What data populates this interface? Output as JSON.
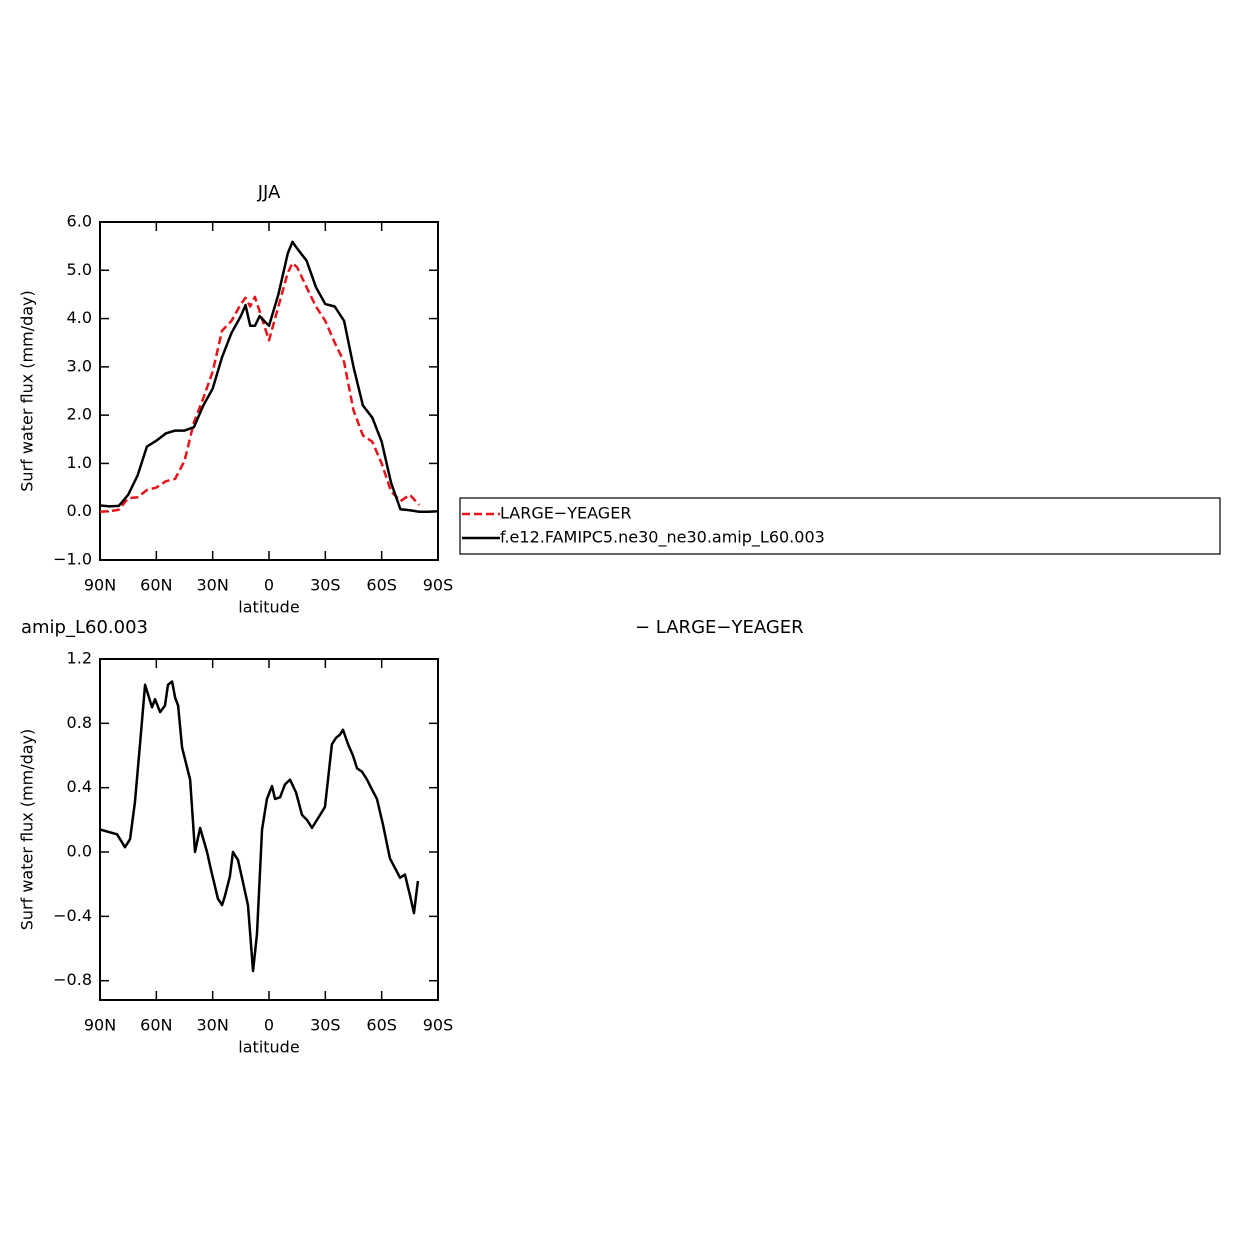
{
  "chart_data": [
    {
      "type": "line",
      "title": "JJA",
      "xlabel": "latitude",
      "ylabel": "Surf water flux (mm/day)",
      "x": [
        90,
        85,
        80,
        75,
        70,
        65,
        60,
        55,
        50,
        45,
        40,
        35,
        30,
        25,
        20,
        15,
        12.5,
        10,
        7.5,
        5,
        0,
        -5,
        -10,
        -12.5,
        -15,
        -20,
        -25,
        -30,
        -35,
        -40,
        -45,
        -50,
        -55,
        -60,
        -65,
        -70,
        -75,
        -80,
        -85,
        -90
      ],
      "series": [
        {
          "name": "LARGE−YEAGER",
          "color": "#e8141a",
          "dash": "8,4",
          "values": [
            0.0,
            0.01,
            0.04,
            0.28,
            0.3,
            0.45,
            0.5,
            0.63,
            0.68,
            1.05,
            1.85,
            2.35,
            2.9,
            3.75,
            3.95,
            4.3,
            4.43,
            4.25,
            4.45,
            4.15,
            3.55,
            4.25,
            4.95,
            5.15,
            5.06,
            4.65,
            4.25,
            3.95,
            3.5,
            3.1,
            2.1,
            1.58,
            1.45,
            1.0,
            0.42,
            0.22,
            0.35,
            0.14,
            null,
            null
          ]
        },
        {
          "name": "f.e12.FAMIPC5.ne30_ne30.amip_L60.003",
          "color": "#000000",
          "values": [
            0.13,
            0.11,
            0.12,
            0.35,
            0.75,
            1.35,
            1.47,
            1.62,
            1.68,
            1.68,
            1.75,
            2.2,
            2.55,
            3.2,
            3.7,
            4.05,
            4.28,
            3.85,
            3.85,
            4.05,
            3.85,
            4.5,
            5.35,
            5.59,
            5.45,
            5.2,
            4.65,
            4.3,
            4.25,
            3.95,
            3.0,
            2.2,
            1.95,
            1.45,
            0.6,
            0.05,
            0.03,
            0.0,
            0.0,
            0.01
          ]
        }
      ],
      "xlim": [
        90,
        -90
      ],
      "xticks": [
        {
          "value": 90,
          "label": "90N"
        },
        {
          "value": 60,
          "label": "60N"
        },
        {
          "value": 30,
          "label": "30N"
        },
        0,
        {
          "value": -30,
          "label": "30S"
        },
        {
          "value": -60,
          "label": "60S"
        },
        {
          "value": -90,
          "label": "90S"
        }
      ],
      "ylim": [
        -1,
        6
      ],
      "yticks": [
        {
          "value": 6,
          "label": "6.0"
        },
        {
          "value": 5,
          "label": "5.0"
        },
        {
          "value": 4,
          "label": "4.0"
        },
        {
          "value": 3,
          "label": "3.0"
        },
        {
          "value": 2,
          "label": "2.0"
        },
        {
          "value": 1,
          "label": "1.0"
        },
        {
          "value": 0,
          "label": "0.0"
        },
        {
          "value": -1,
          "label": "−1.0"
        }
      ],
      "grid": false,
      "legend": "right"
    },
    {
      "type": "line",
      "title": [
        "amip_L60.003",
        "− LARGE−YEAGER"
      ],
      "xlabel": "latitude",
      "ylabel": "Surf water flux (mm/day)",
      "x": [
        90,
        80.9,
        76.7,
        74,
        71.4,
        68.7,
        66,
        62.3,
        60.7,
        58,
        55.4,
        53.8,
        51.6,
        50,
        48.4,
        46.3,
        42,
        39.4,
        36.7,
        33,
        30.9,
        27.2,
        25,
        23.4,
        20.8,
        19.2,
        16.5,
        14.4,
        11.2,
        8.5,
        6.4,
        3.7,
        1.1,
        -1.6,
        -3.2,
        -5.9,
        -8.5,
        -11.2,
        -14.4,
        -17.6,
        -20.2,
        -22.9,
        -26.1,
        -29.8,
        -33.5,
        -35.7,
        -37.8,
        -39.4,
        -42.1,
        -44.7,
        -46.9,
        -49.5,
        -52.2,
        -54.8,
        -57.5,
        -60.7,
        -64.4,
        -67.1,
        -69.8,
        -72.4,
        -75.1,
        -77.2,
        -79.3
      ],
      "series": [
        {
          "color": "#000000",
          "values": [
            0.14,
            0.11,
            0.03,
            0.08,
            0.31,
            0.67,
            1.04,
            0.9,
            0.95,
            0.87,
            0.91,
            1.04,
            1.06,
            0.96,
            0.91,
            0.65,
            0.45,
            0.0,
            0.15,
            0.0,
            -0.11,
            -0.29,
            -0.33,
            -0.27,
            -0.15,
            0.0,
            -0.05,
            -0.16,
            -0.33,
            -0.74,
            -0.51,
            0.14,
            0.33,
            0.41,
            0.33,
            0.34,
            0.42,
            0.45,
            0.37,
            0.23,
            0.2,
            0.15,
            0.21,
            0.28,
            0.67,
            0.71,
            0.73,
            0.76,
            0.67,
            0.6,
            0.52,
            0.5,
            0.45,
            0.39,
            0.33,
            0.17,
            -0.04,
            -0.1,
            -0.16,
            -0.14,
            -0.27,
            -0.38,
            -0.18
          ]
        }
      ],
      "xlim": [
        90,
        -90
      ],
      "xticks": [
        {
          "value": 90,
          "label": "90N"
        },
        {
          "value": 60,
          "label": "60N"
        },
        {
          "value": 30,
          "label": "30N"
        },
        0,
        {
          "value": -30,
          "label": "30S"
        },
        {
          "value": -60,
          "label": "60S"
        },
        {
          "value": -90,
          "label": "90S"
        }
      ],
      "ylim": [
        -0.92,
        1.2
      ],
      "yticks": [
        1.2,
        0.8,
        0.4,
        {
          "value": 0,
          "label": "0.0"
        },
        {
          "value": -0.4,
          "label": "−0.4"
        },
        {
          "value": -0.8,
          "label": "−0.8"
        }
      ],
      "grid": false
    }
  ]
}
